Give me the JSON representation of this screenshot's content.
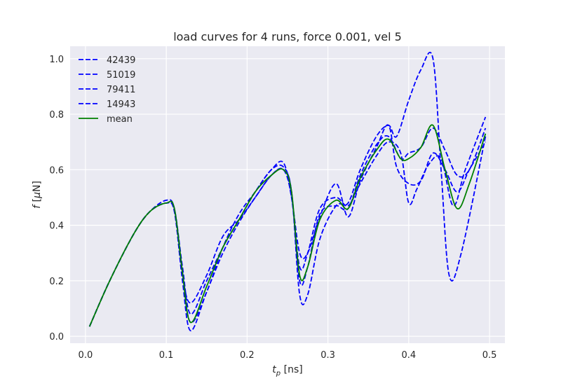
{
  "chart_data": {
    "type": "line",
    "title": "load curves for 4 runs, force 0.001, vel 5",
    "xlabel": "t_p [ns]",
    "ylabel": "f [μN]",
    "xlim": [
      -0.019,
      0.519
    ],
    "ylim": [
      -0.025,
      1.045
    ],
    "xticks": [
      0.0,
      0.1,
      0.2,
      0.3,
      0.4,
      0.5
    ],
    "xtick_labels": [
      "0.0",
      "0.1",
      "0.2",
      "0.3",
      "0.4",
      "0.5"
    ],
    "yticks": [
      0.0,
      0.2,
      0.4,
      0.6,
      0.8,
      1.0
    ],
    "ytick_labels": [
      "0.0",
      "0.2",
      "0.4",
      "0.6",
      "0.8",
      "1.0"
    ],
    "grid": true,
    "legend_position": "upper-left",
    "series": [
      {
        "name": "42439",
        "color": "#0000ff",
        "dashed": true,
        "x": [
          0.005,
          0.03,
          0.06,
          0.08,
          0.1,
          0.11,
          0.12,
          0.13,
          0.15,
          0.17,
          0.19,
          0.21,
          0.23,
          0.245,
          0.255,
          0.265,
          0.275,
          0.29,
          0.31,
          0.325,
          0.34,
          0.36,
          0.375,
          0.385,
          0.4,
          0.415,
          0.43,
          0.445,
          0.46,
          0.475,
          0.495
        ],
        "y": [
          0.035,
          0.2,
          0.37,
          0.45,
          0.49,
          0.46,
          0.25,
          0.08,
          0.2,
          0.32,
          0.42,
          0.52,
          0.6,
          0.625,
          0.5,
          0.3,
          0.3,
          0.43,
          0.55,
          0.43,
          0.56,
          0.68,
          0.76,
          0.61,
          0.55,
          0.56,
          0.66,
          0.6,
          0.52,
          0.6,
          0.7
        ]
      },
      {
        "name": "51019",
        "color": "#0000ff",
        "dashed": true,
        "x": [
          0.005,
          0.03,
          0.06,
          0.08,
          0.1,
          0.11,
          0.12,
          0.13,
          0.15,
          0.17,
          0.19,
          0.21,
          0.23,
          0.245,
          0.255,
          0.265,
          0.275,
          0.29,
          0.31,
          0.325,
          0.34,
          0.36,
          0.375,
          0.385,
          0.4,
          0.415,
          0.43,
          0.44,
          0.45,
          0.465,
          0.495
        ],
        "y": [
          0.035,
          0.2,
          0.37,
          0.45,
          0.48,
          0.45,
          0.22,
          0.12,
          0.22,
          0.36,
          0.42,
          0.5,
          0.58,
          0.6,
          0.52,
          0.15,
          0.15,
          0.35,
          0.47,
          0.48,
          0.6,
          0.72,
          0.76,
          0.72,
          0.85,
          0.96,
          1.0,
          0.6,
          0.22,
          0.3,
          0.72
        ]
      },
      {
        "name": "79411",
        "color": "#0000ff",
        "dashed": true,
        "x": [
          0.005,
          0.03,
          0.06,
          0.08,
          0.1,
          0.11,
          0.12,
          0.13,
          0.15,
          0.17,
          0.19,
          0.21,
          0.23,
          0.245,
          0.255,
          0.265,
          0.275,
          0.29,
          0.31,
          0.325,
          0.34,
          0.36,
          0.375,
          0.39,
          0.4,
          0.41,
          0.425,
          0.44,
          0.455,
          0.47,
          0.495
        ],
        "y": [
          0.035,
          0.2,
          0.37,
          0.45,
          0.48,
          0.45,
          0.2,
          0.02,
          0.16,
          0.3,
          0.41,
          0.5,
          0.58,
          0.6,
          0.5,
          0.25,
          0.3,
          0.46,
          0.5,
          0.47,
          0.55,
          0.65,
          0.7,
          0.66,
          0.48,
          0.53,
          0.62,
          0.64,
          0.47,
          0.6,
          0.79
        ]
      },
      {
        "name": "14943",
        "color": "#0000ff",
        "dashed": true,
        "x": [
          0.005,
          0.03,
          0.06,
          0.08,
          0.1,
          0.11,
          0.12,
          0.13,
          0.15,
          0.17,
          0.19,
          0.21,
          0.23,
          0.245,
          0.255,
          0.265,
          0.275,
          0.29,
          0.31,
          0.325,
          0.34,
          0.36,
          0.375,
          0.39,
          0.4,
          0.415,
          0.43,
          0.445,
          0.46,
          0.475,
          0.495
        ],
        "y": [
          0.035,
          0.2,
          0.37,
          0.45,
          0.48,
          0.46,
          0.23,
          0.05,
          0.16,
          0.32,
          0.44,
          0.52,
          0.6,
          0.61,
          0.52,
          0.2,
          0.25,
          0.44,
          0.47,
          0.46,
          0.58,
          0.69,
          0.72,
          0.64,
          0.66,
          0.68,
          0.75,
          0.67,
          0.58,
          0.6,
          0.75
        ]
      },
      {
        "name": "mean",
        "color": "#008000",
        "dashed": false,
        "x": [
          0.005,
          0.03,
          0.06,
          0.08,
          0.1,
          0.11,
          0.12,
          0.13,
          0.15,
          0.17,
          0.19,
          0.21,
          0.23,
          0.245,
          0.255,
          0.265,
          0.275,
          0.29,
          0.31,
          0.325,
          0.34,
          0.36,
          0.375,
          0.39,
          0.4,
          0.415,
          0.43,
          0.445,
          0.46,
          0.475,
          0.495
        ],
        "y": [
          0.035,
          0.2,
          0.37,
          0.45,
          0.48,
          0.46,
          0.23,
          0.05,
          0.18,
          0.32,
          0.42,
          0.52,
          0.58,
          0.6,
          0.52,
          0.22,
          0.25,
          0.42,
          0.49,
          0.46,
          0.57,
          0.67,
          0.71,
          0.64,
          0.64,
          0.68,
          0.76,
          0.6,
          0.46,
          0.55,
          0.73
        ]
      }
    ]
  }
}
